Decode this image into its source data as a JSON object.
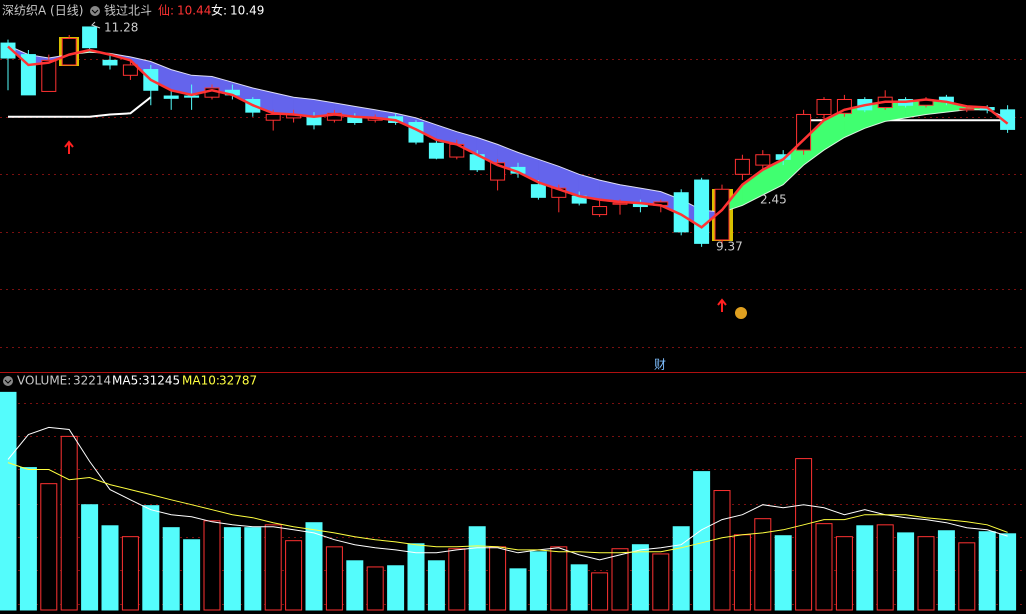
{
  "chart_data": [
    {
      "type": "candlestick",
      "title": "深纺织A (日线)",
      "indicator": "钱过北斗",
      "marker_text": "财",
      "annotations": [
        "11.28",
        "9.37",
        "2.45"
      ],
      "ylim": [
        8.3,
        11.41
      ],
      "grid_values": [
        8.5,
        9,
        9.5,
        10,
        10.5,
        11
      ],
      "up_color": "#ff3232",
      "down_color": "#54fcfc",
      "band_colors": [
        "#6464ec",
        "#40ff70"
      ],
      "open": [
        11.14,
        11.04,
        10.72,
        10.95,
        11.28,
        10.99,
        10.86,
        10.91,
        10.68,
        10.68,
        10.67,
        10.73,
        10.65,
        10.47,
        10.49,
        10.5,
        10.47,
        10.5,
        10.47,
        10.5,
        10.45,
        10.27,
        10.15,
        10.17,
        9.95,
        10.06,
        9.91,
        9.8,
        9.81,
        9.65,
        9.74,
        9.74,
        9.73,
        9.84,
        9.95,
        9.43,
        10.0,
        10.08,
        10.17,
        10.21,
        10.52,
        10.53,
        10.65,
        10.58,
        10.65,
        10.6,
        10.67,
        10.56,
        10.58,
        10.56
      ],
      "high": [
        11.17,
        11.08,
        11.04,
        11.21,
        11.28,
        11.04,
        10.99,
        10.95,
        10.73,
        10.78,
        10.78,
        10.78,
        10.67,
        10.56,
        10.56,
        10.54,
        10.56,
        10.53,
        10.52,
        10.53,
        10.47,
        10.3,
        10.3,
        10.21,
        10.13,
        10.1,
        9.95,
        9.91,
        9.85,
        9.78,
        9.78,
        9.78,
        9.78,
        9.87,
        9.97,
        9.91,
        10.17,
        10.21,
        10.21,
        10.56,
        10.67,
        10.69,
        10.67,
        10.73,
        10.67,
        10.67,
        10.69,
        10.6,
        10.6,
        10.6
      ],
      "low": [
        10.73,
        10.69,
        10.72,
        10.95,
        11.06,
        10.91,
        10.82,
        10.6,
        10.56,
        10.56,
        10.65,
        10.65,
        10.5,
        10.38,
        10.45,
        10.39,
        10.45,
        10.43,
        10.45,
        10.43,
        10.26,
        10.13,
        10.13,
        10.02,
        9.86,
        9.97,
        9.78,
        9.67,
        9.73,
        9.63,
        9.65,
        9.67,
        9.67,
        9.47,
        9.37,
        9.37,
        9.95,
        10.04,
        10.08,
        10.17,
        10.47,
        10.5,
        10.54,
        10.56,
        10.58,
        10.58,
        10.6,
        10.54,
        10.53,
        10.36
      ],
      "close": [
        11.01,
        10.69,
        10.99,
        11.18,
        11.1,
        10.95,
        10.95,
        10.73,
        10.66,
        10.67,
        10.75,
        10.69,
        10.54,
        10.52,
        10.52,
        10.43,
        10.53,
        10.45,
        10.49,
        10.45,
        10.28,
        10.14,
        10.26,
        10.04,
        10.1,
        10.01,
        9.8,
        9.88,
        9.75,
        9.72,
        9.75,
        9.72,
        9.76,
        9.5,
        9.4,
        9.87,
        10.13,
        10.17,
        10.13,
        10.52,
        10.65,
        10.65,
        10.56,
        10.67,
        10.6,
        10.65,
        10.63,
        10.57,
        10.56,
        10.39
      ],
      "series": [
        {
          "label": "仙:",
          "color": "#ff3333",
          "values": [
            11.11,
            10.95,
            10.97,
            11.04,
            11.08,
            11.04,
            10.99,
            10.82,
            10.73,
            10.69,
            10.73,
            10.69,
            10.6,
            10.53,
            10.52,
            10.5,
            10.52,
            10.5,
            10.49,
            10.47,
            10.39,
            10.3,
            10.26,
            10.17,
            10.08,
            10.02,
            9.93,
            9.87,
            9.81,
            9.78,
            9.76,
            9.75,
            9.73,
            9.65,
            9.54,
            9.69,
            9.91,
            10.04,
            10.13,
            10.3,
            10.47,
            10.56,
            10.6,
            10.63,
            10.63,
            10.65,
            10.63,
            10.59,
            10.58,
            10.44
          ]
        },
        {
          "label": "女:",
          "color": "#ffffff",
          "values": [
            11.12,
            11.04,
            11.01,
            11.04,
            11.06,
            11.05,
            11.02,
            10.98,
            10.91,
            10.86,
            10.85,
            10.8,
            10.75,
            10.71,
            10.67,
            10.65,
            10.62,
            10.59,
            10.56,
            10.53,
            10.49,
            10.43,
            10.37,
            10.32,
            10.26,
            10.19,
            10.13,
            10.07,
            10.0,
            9.95,
            9.91,
            9.88,
            9.85,
            9.78,
            9.69,
            9.67,
            9.73,
            9.82,
            9.91,
            10.08,
            10.21,
            10.32,
            10.4,
            10.46,
            10.49,
            10.52,
            10.54,
            10.56,
            10.56,
            10.49
          ]
        },
        {
          "color": "#ffffff",
          "values": [
            10.5,
            10.5,
            10.5,
            10.5,
            10.5,
            10.52,
            10.53,
            10.67,
            null,
            null,
            null,
            null,
            null,
            null,
            null,
            null,
            null,
            null,
            null,
            null,
            null,
            null,
            null,
            null,
            null,
            null,
            null,
            null,
            null,
            null,
            null,
            null,
            null,
            null,
            null,
            null,
            null,
            null,
            null,
            10.47,
            10.47,
            10.47,
            10.47,
            10.47,
            10.47,
            10.47,
            10.47,
            10.47,
            10.47,
            10.47
          ]
        }
      ]
    },
    {
      "type": "bar",
      "label": "VOLUME:",
      "ylim": [
        0,
        93000
      ],
      "grid_values": [
        2500,
        17000,
        31000,
        45000,
        59500,
        73500,
        87500
      ],
      "values": [
        92000,
        60200,
        53400,
        73400,
        44500,
        35600,
        31000,
        44100,
        34800,
        29700,
        37700,
        34800,
        34800,
        36000,
        29300,
        36900,
        26700,
        20800,
        18200,
        18700,
        28000,
        20800,
        25900,
        35200,
        26700,
        17400,
        24600,
        26700,
        19100,
        15700,
        25900,
        27600,
        23700,
        35200,
        58500,
        50500,
        31800,
        38600,
        31400,
        64000,
        36500,
        31000,
        35600,
        36000,
        32600,
        31000,
        33500,
        28400,
        33100,
        32214
      ],
      "series": [
        {
          "label": "MA5:",
          "color": "#ffffff",
          "values": [
            63600,
            74200,
            77200,
            76300,
            62800,
            50900,
            46600,
            42400,
            40300,
            39400,
            37300,
            36000,
            35200,
            35200,
            33900,
            32600,
            29700,
            27600,
            26300,
            25400,
            24200,
            24200,
            25400,
            26300,
            26300,
            24200,
            25400,
            26300,
            23300,
            21200,
            23300,
            25400,
            26300,
            27600,
            33900,
            38200,
            40300,
            44500,
            43200,
            44500,
            43200,
            40300,
            42400,
            40300,
            39000,
            38200,
            36900,
            34800,
            33900,
            31245
          ]
        },
        {
          "label": "MA10:",
          "color": "#ffff40",
          "values": [
            62300,
            59400,
            59400,
            55100,
            56000,
            53000,
            50900,
            48800,
            46600,
            44500,
            42400,
            40300,
            39000,
            36900,
            35200,
            33900,
            32600,
            31000,
            29700,
            28800,
            27600,
            26700,
            26700,
            27100,
            26700,
            25400,
            25400,
            24600,
            24600,
            24200,
            24200,
            24600,
            24600,
            26300,
            28400,
            30500,
            31800,
            32600,
            33900,
            36000,
            38200,
            38200,
            40300,
            40300,
            40300,
            39000,
            38200,
            37300,
            36000,
            32787
          ]
        }
      ]
    }
  ]
}
